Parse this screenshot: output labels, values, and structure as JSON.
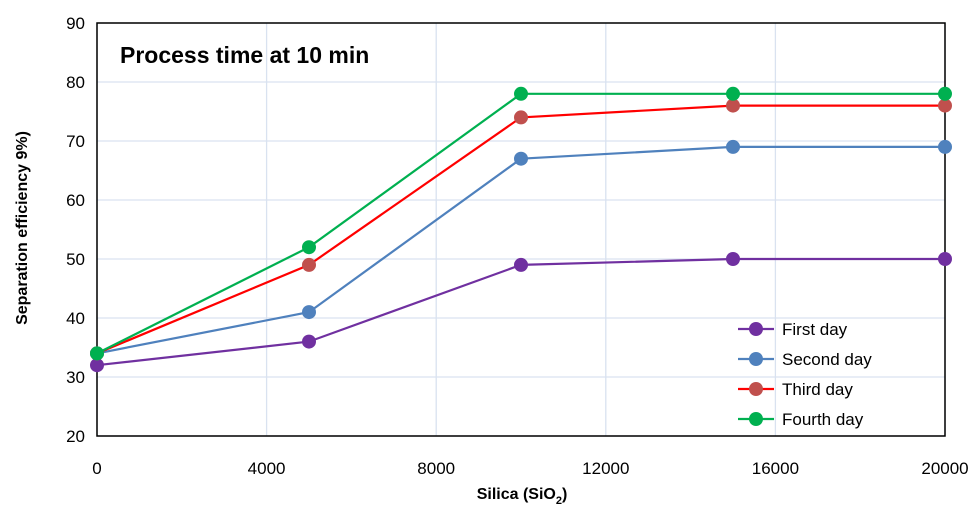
{
  "chart_data": {
    "type": "line",
    "title": "Process time at 10 min",
    "xlabel_main": "Silica (SiO",
    "xlabel_sub": "2",
    "xlabel_end": ")",
    "ylabel": "Separation efficiency  9%)",
    "xlim": [
      0,
      20000
    ],
    "ylim": [
      20,
      90
    ],
    "xticks": [
      0,
      4000,
      8000,
      12000,
      16000,
      20000
    ],
    "xtick_labels": [
      "0",
      "4000",
      "8000",
      "12000",
      "16000",
      "20000"
    ],
    "yticks": [
      20,
      30,
      40,
      50,
      60,
      70,
      80,
      90
    ],
    "ytick_labels": [
      "20",
      "30",
      "40",
      "50",
      "60",
      "70",
      "80",
      "90"
    ],
    "grid": true,
    "legend_position": "bottom-right",
    "x": [
      0,
      5000,
      10000,
      15000,
      20000
    ],
    "series": [
      {
        "name": "First day",
        "values": [
          32,
          36,
          49,
          50,
          50
        ],
        "line_color": "#7030A0",
        "marker_color": "#7030A0"
      },
      {
        "name": "Second day",
        "values": [
          34,
          41,
          67,
          69,
          69
        ],
        "line_color": "#4F81BD",
        "marker_color": "#4F81BD"
      },
      {
        "name": "Third day",
        "values": [
          34,
          49,
          74,
          76,
          76
        ],
        "line_color": "#FF0000",
        "marker_color": "#C0504D"
      },
      {
        "name": "Fourth day",
        "values": [
          34,
          52,
          78,
          78,
          78
        ],
        "line_color": "#00B050",
        "marker_color": "#00B050"
      }
    ]
  }
}
